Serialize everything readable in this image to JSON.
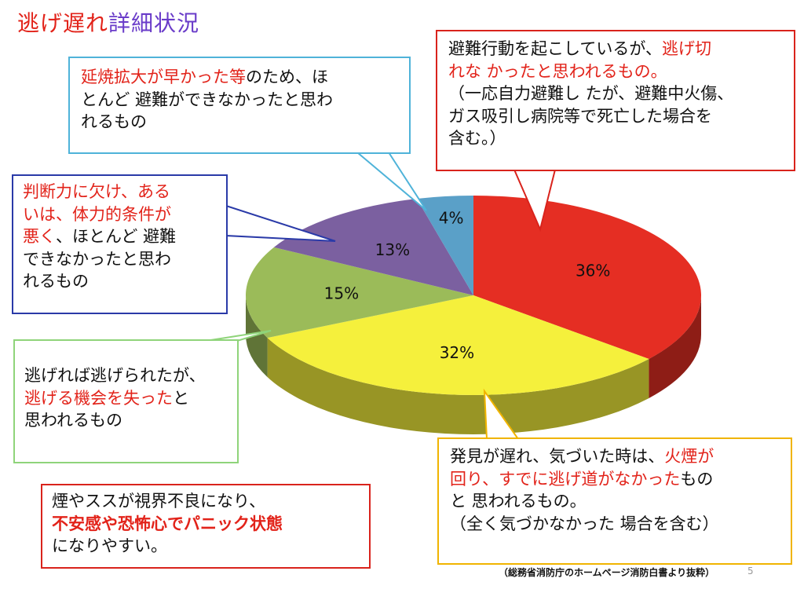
{
  "title": {
    "part1": "逃げ遅れ",
    "part2": "詳細状況"
  },
  "chart_data": {
    "type": "pie",
    "slices": [
      {
        "label": "逃げ切れなかった",
        "value": 36,
        "text": "36%",
        "color": "#e52e23"
      },
      {
        "label": "火煙が回り",
        "value": 32,
        "text": "32%",
        "color": "#f5f03c"
      },
      {
        "label": "逃げる機会を失った",
        "value": 15,
        "text": "15%",
        "color": "#9bbb59"
      },
      {
        "label": "判断力に欠け",
        "value": 13,
        "text": "13%",
        "color": "#7b60a0"
      },
      {
        "label": "延焼拡大が早かった",
        "value": 4,
        "text": "4%",
        "color": "#5aa0c8"
      }
    ]
  },
  "callouts": {
    "escape_failed": {
      "l1a": "避難行動を起こしているが、",
      "l1b": "逃げ切",
      "l2": "れな かったと思われるもの。",
      "l3": "（一応自力避難し たが、避難中火傷、",
      "l4": "ガス吸引し病院等で死亡した場合を",
      "l5": "含む。）",
      "border": "#d9231c"
    },
    "fire_spread": {
      "l1a": "延焼拡大が早かった等",
      "l1b": "のため、ほ",
      "l2": "とんど 避難ができなかったと思わ",
      "l3": "れるもの",
      "border": "#4fb3d9"
    },
    "judgment": {
      "l1": "判断力に欠け、ある",
      "l2": "いは、体力的条件が",
      "l3a": "悪く",
      "l3b": "、ほとんど 避難",
      "l4": "できなかったと思わ",
      "l5": "れるもの",
      "border": "#2a3aa8"
    },
    "missed_chance": {
      "l1": "逃げれば逃げられたが、",
      "l2a": "逃げる機会を失った",
      "l2b": "と",
      "l3": "思われるもの",
      "border": "#8fd47a"
    },
    "late_discovery": {
      "l1a": "発見が遅れ、気づいた時は、",
      "l1b": "火煙が",
      "l2a": "回り、すでに逃げ道がなかった",
      "l2b": "もの",
      "l3": "と 思われるもの。",
      "l4": "（全く気づかなかった 場合を含む）",
      "border": "#f0b400"
    },
    "smoke_note": {
      "l1": "煙やススが視界不良になり、",
      "l2": "不安感や恐怖心でパニック状態",
      "l3": "になりやすい。",
      "border": "#d9231c"
    }
  },
  "source": "（総務省消防庁のホームページ消防白書より抜粋）",
  "page_number": "5"
}
